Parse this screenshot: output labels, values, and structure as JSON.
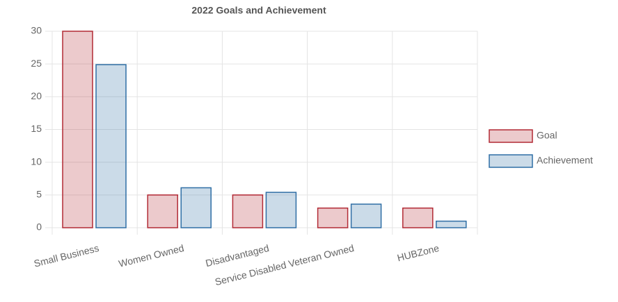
{
  "chart_data": {
    "type": "bar",
    "title": "2022 Goals and Achievement",
    "categories": [
      "Small Business",
      "Women Owned",
      "Disadvantaged",
      "Service Disabled Veteran Owned",
      "HUBZone"
    ],
    "series": [
      {
        "name": "Goal",
        "color": "#b22a35",
        "values": [
          30,
          5,
          5,
          3,
          3
        ]
      },
      {
        "name": "Achievement",
        "color": "#2f6ea5",
        "values": [
          24.9,
          6.1,
          5.4,
          3.6,
          1.0
        ]
      }
    ],
    "ylim": [
      0,
      30
    ],
    "yticks": [
      0,
      5,
      10,
      15,
      20,
      25,
      30
    ],
    "grid": true,
    "legend": "right"
  }
}
